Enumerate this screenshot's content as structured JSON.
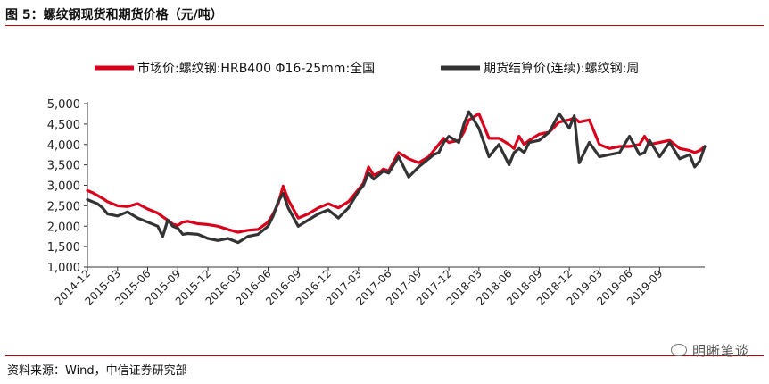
{
  "figure_title": "图 5：螺纹钢现货和期货价格（元/吨）",
  "source_note": "资料来源：Wind，中信证券研究部",
  "watermark": "明晰笔谈",
  "colors": {
    "spot": "#d9001b",
    "futures": "#333333",
    "rule": "#c00000"
  },
  "chart_data": {
    "type": "line",
    "title": "",
    "xlabel": "",
    "ylabel": "",
    "ylim": [
      1000,
      5000
    ],
    "yticks": [
      "1,000",
      "1,500",
      "2,000",
      "2,500",
      "3,000",
      "3,500",
      "4,000",
      "4,500",
      "5,000"
    ],
    "ytick_values": [
      1000,
      1500,
      2000,
      2500,
      3000,
      3500,
      4000,
      4500,
      5000
    ],
    "xticks": [
      "2014-12",
      "2015-03",
      "2015-06",
      "2015-09",
      "2015-12",
      "2016-03",
      "2016-06",
      "2016-09",
      "2016-12",
      "2017-03",
      "2017-06",
      "2017-09",
      "2017-12",
      "2018-03",
      "2018-06",
      "2018-09",
      "2018-12",
      "2019-03",
      "2019-06",
      "2019-09"
    ],
    "x_range": [
      0,
      61.5
    ],
    "legend_position": "top",
    "grid": false,
    "series": [
      {
        "name": "市场价:螺纹钢:HRB400 Φ16-25mm:全国",
        "x": [
          0,
          0.5,
          1,
          1.5,
          2,
          3,
          4,
          5,
          6,
          7,
          7.5,
          8,
          8.5,
          9,
          9.5,
          10,
          11,
          12,
          13,
          14,
          15,
          16,
          17,
          18,
          18.5,
          19,
          19.5,
          20,
          21,
          22,
          23,
          24,
          25,
          26,
          27,
          27.5,
          28,
          28.5,
          29,
          29.5,
          30,
          31,
          32,
          33,
          34,
          34.5,
          35,
          35.5,
          36,
          37,
          37.5,
          38,
          39,
          40,
          41,
          42,
          42.5,
          43,
          43.5,
          44,
          45,
          46,
          47,
          48,
          48.5,
          49,
          50,
          51,
          52,
          53,
          54,
          55,
          55.5,
          56,
          57,
          58,
          59,
          60,
          60.5,
          61,
          61.5
        ],
        "values": [
          2870,
          2820,
          2750,
          2680,
          2600,
          2500,
          2480,
          2550,
          2420,
          2320,
          2230,
          2150,
          2050,
          2020,
          2100,
          2120,
          2060,
          2040,
          2000,
          1920,
          1850,
          1900,
          1920,
          2100,
          2300,
          2550,
          2980,
          2650,
          2200,
          2300,
          2450,
          2550,
          2450,
          2600,
          2900,
          3050,
          3450,
          3250,
          3300,
          3400,
          3350,
          3800,
          3650,
          3550,
          3700,
          3850,
          4000,
          4150,
          4050,
          4100,
          4300,
          4600,
          4750,
          4150,
          4150,
          4000,
          3900,
          4200,
          4000,
          4100,
          4250,
          4300,
          4550,
          4600,
          4650,
          4550,
          4600,
          4000,
          3900,
          3950,
          3950,
          4000,
          4200,
          4000,
          4050,
          4100,
          3900,
          3850,
          3800,
          3850,
          3950
        ]
      },
      {
        "name": "期货结算价(连续):螺纹钢:周",
        "x": [
          0,
          0.5,
          1,
          1.5,
          2,
          3,
          4,
          5,
          6,
          7,
          7.5,
          8,
          8.5,
          9,
          9.5,
          10,
          11,
          12,
          13,
          14,
          15,
          16,
          17,
          18,
          18.5,
          19,
          19.5,
          20,
          21,
          22,
          23,
          24,
          25,
          26,
          27,
          27.5,
          28,
          28.5,
          29,
          29.5,
          30,
          31,
          32,
          33,
          34,
          34.5,
          35,
          35.5,
          36,
          37,
          37.5,
          38,
          39,
          40,
          41,
          42,
          42.5,
          43,
          43.5,
          44,
          45,
          46,
          47,
          48,
          48.5,
          49,
          50,
          51,
          52,
          53,
          54,
          55,
          55.5,
          56,
          57,
          58,
          59,
          60,
          60.5,
          61,
          61.5
        ],
        "values": [
          2650,
          2600,
          2550,
          2450,
          2300,
          2250,
          2350,
          2200,
          2100,
          2000,
          1750,
          2150,
          2000,
          1950,
          1800,
          1820,
          1800,
          1700,
          1650,
          1700,
          1600,
          1750,
          1800,
          2000,
          2250,
          2600,
          2800,
          2450,
          2000,
          2150,
          2300,
          2400,
          2200,
          2450,
          2850,
          3000,
          3300,
          3150,
          3250,
          3350,
          3300,
          3700,
          3200,
          3450,
          3650,
          3750,
          3800,
          4050,
          4200,
          4050,
          4500,
          4800,
          4400,
          3700,
          4000,
          3500,
          3800,
          3900,
          3800,
          4050,
          4100,
          4300,
          4750,
          4400,
          4700,
          3550,
          4050,
          3700,
          3750,
          3800,
          4200,
          3750,
          3800,
          4100,
          3700,
          4050,
          3650,
          3750,
          3450,
          3600,
          3950
        ]
      }
    ]
  }
}
